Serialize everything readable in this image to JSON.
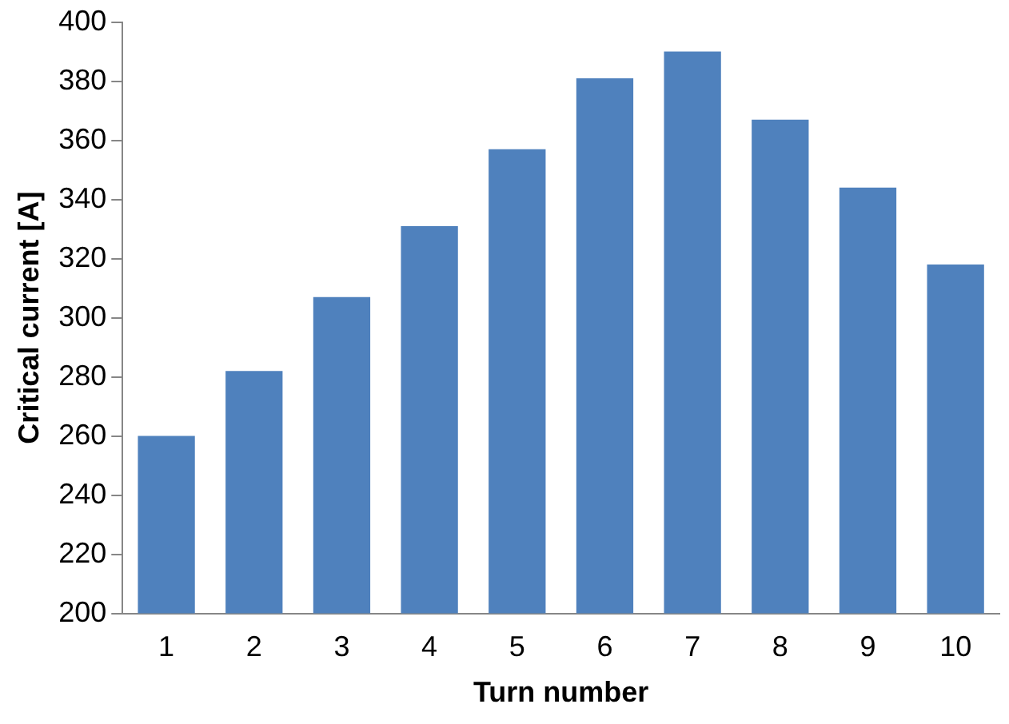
{
  "chart_data": {
    "type": "bar",
    "xlabel": "Turn number",
    "ylabel": "Critical current [A]",
    "categories": [
      "1",
      "2",
      "3",
      "4",
      "5",
      "6",
      "7",
      "8",
      "9",
      "10"
    ],
    "series": [
      {
        "color": "#4f81bd",
        "values": [
          260,
          282,
          307,
          331,
          357,
          381,
          390,
          367,
          344,
          318
        ]
      }
    ],
    "ylim": [
      200,
      400
    ],
    "yticks": [
      200,
      220,
      240,
      260,
      280,
      300,
      320,
      340,
      360,
      380,
      400
    ],
    "grid": false,
    "legend": false
  }
}
